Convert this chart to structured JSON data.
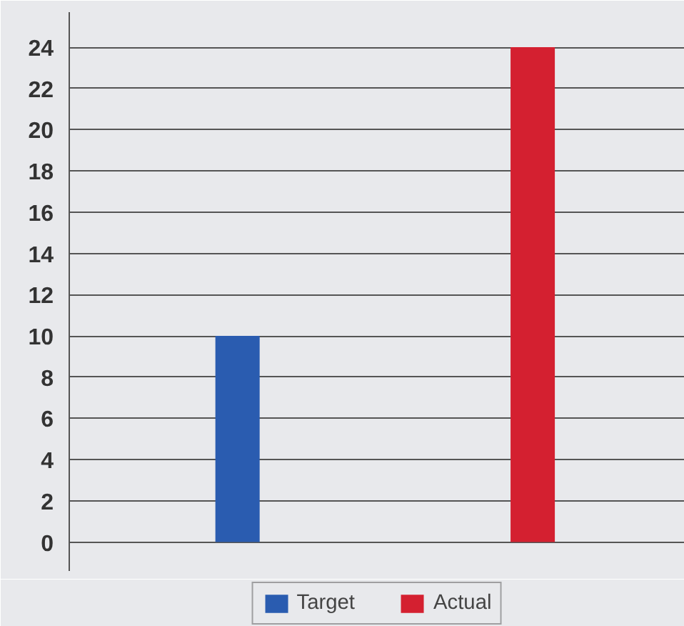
{
  "chart_data": {
    "type": "bar",
    "categories": [
      null,
      null
    ],
    "series": [
      {
        "name": "Target",
        "color": "#2a5cb0",
        "values": [
          10,
          null
        ]
      },
      {
        "name": "Actual",
        "color": "#d42030",
        "values": [
          null,
          24
        ]
      }
    ],
    "ylim": [
      -1.4,
      25.7
    ],
    "yticks": [
      0,
      2,
      4,
      6,
      8,
      10,
      12,
      14,
      16,
      18,
      20,
      22,
      24
    ],
    "grid": "y",
    "legend": "bottom",
    "tick_labels": "y"
  }
}
